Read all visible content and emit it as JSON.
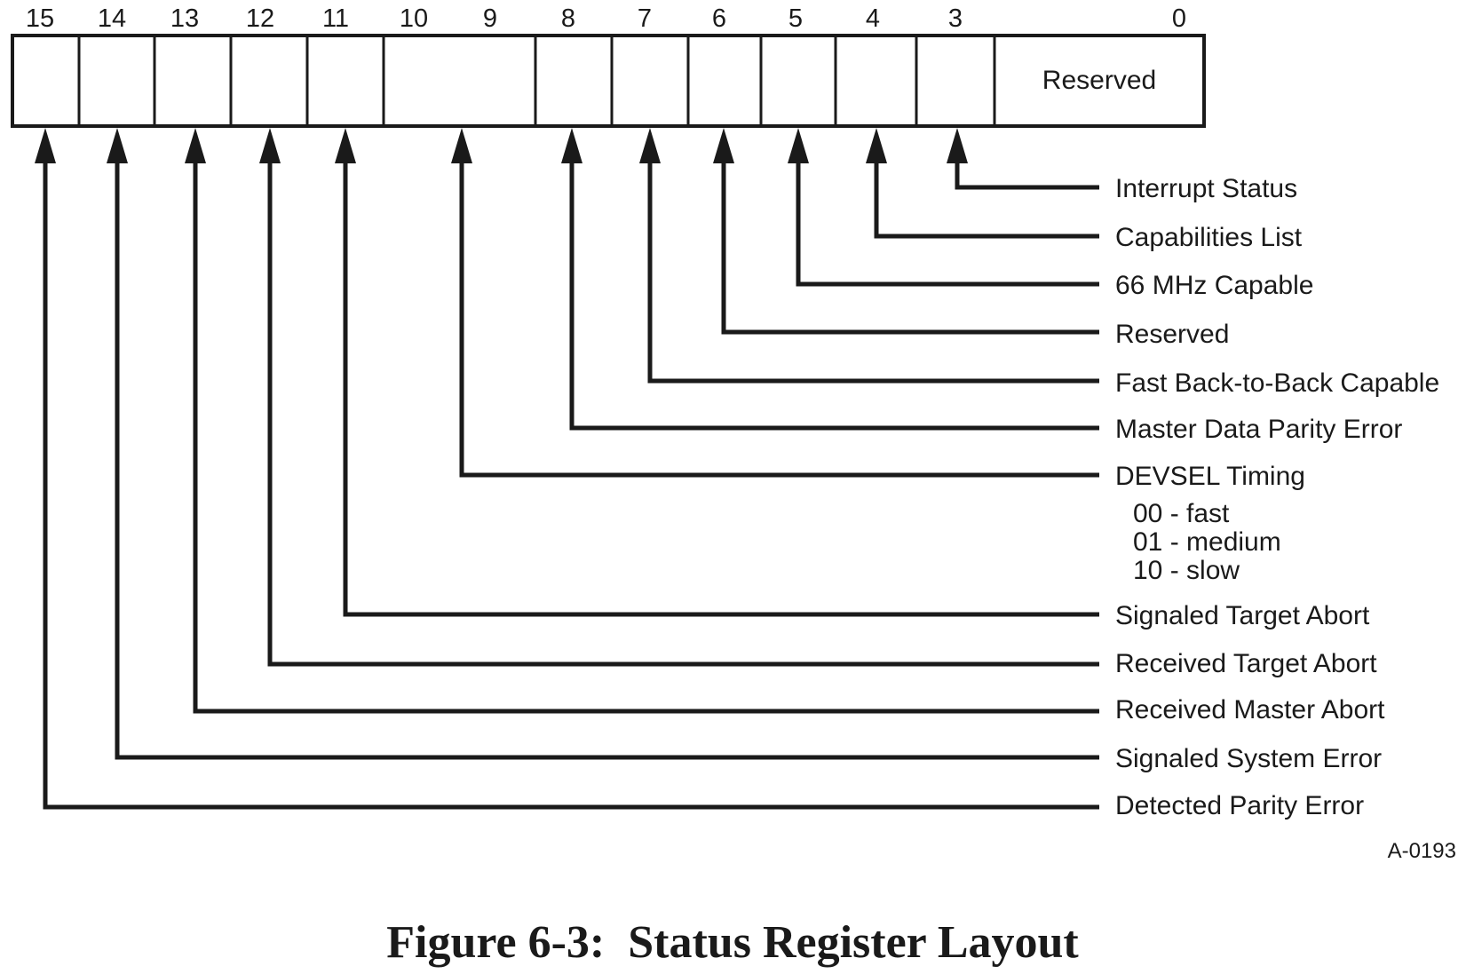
{
  "register": {
    "bit_numbers": [
      "15",
      "14",
      "13",
      "12",
      "11",
      "10",
      "9",
      "8",
      "7",
      "6",
      "5",
      "4",
      "3",
      "0"
    ],
    "reserved_field_label": "Reserved"
  },
  "fields": [
    {
      "bits": "3",
      "label": "Interrupt Status"
    },
    {
      "bits": "4",
      "label": "Capabilities List"
    },
    {
      "bits": "5",
      "label": "66 MHz Capable"
    },
    {
      "bits": "6",
      "label": "Reserved"
    },
    {
      "bits": "7",
      "label": "Fast Back-to-Back Capable"
    },
    {
      "bits": "8",
      "label": "Master Data Parity Error"
    },
    {
      "bits": "10-9",
      "label": "DEVSEL Timing",
      "sub": [
        "00 - fast",
        "01 - medium",
        "10 - slow"
      ]
    },
    {
      "bits": "11",
      "label": "Signaled Target Abort"
    },
    {
      "bits": "12",
      "label": "Received Target Abort"
    },
    {
      "bits": "13",
      "label": "Received Master Abort"
    },
    {
      "bits": "14",
      "label": "Signaled System Error"
    },
    {
      "bits": "15",
      "label": "Detected Parity Error"
    }
  ],
  "figure_id": "A-0193",
  "caption": "Figure 6-3:  Status Register Layout"
}
